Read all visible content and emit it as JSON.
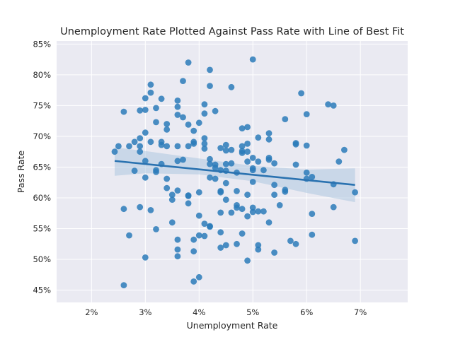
{
  "colors": {
    "background": "#ffffff",
    "plot_background": "#eaeaf2",
    "grid": "#ffffff",
    "points": "#2b7bba",
    "fit_line": "#2a72b0",
    "confidence_band": "#a8c4de",
    "text": "#262626"
  },
  "chart_data": {
    "type": "scatter",
    "title": "Unemployment Rate Plotted Against Pass Rate with Line of Best Fit",
    "xlabel": "Unemployment Rate",
    "ylabel": "Pass Rate",
    "xlim": [
      0.0135,
      0.0788
    ],
    "ylim": [
      0.43,
      0.855
    ],
    "x_ticks": [
      0.02,
      0.03,
      0.04,
      0.05,
      0.06,
      0.07
    ],
    "x_tick_labels": [
      "2%",
      "3%",
      "4%",
      "5%",
      "6%",
      "7%"
    ],
    "y_ticks": [
      0.45,
      0.5,
      0.55,
      0.6,
      0.65,
      0.7,
      0.75,
      0.8,
      0.85
    ],
    "y_tick_labels": [
      "45%",
      "50%",
      "55%",
      "60%",
      "65%",
      "70%",
      "75%",
      "80%",
      "85%"
    ],
    "grid": true,
    "legend": "none",
    "fit_line": {
      "x": [
        0.0243,
        0.069
      ],
      "y": [
        0.66,
        0.621
      ]
    },
    "confidence_band": {
      "x": [
        0.0243,
        0.03,
        0.04,
        0.05,
        0.06,
        0.069
      ],
      "lower": [
        0.636,
        0.64,
        0.638,
        0.627,
        0.608,
        0.593
      ],
      "upper": [
        0.682,
        0.676,
        0.664,
        0.652,
        0.646,
        0.648
      ]
    },
    "series": [
      {
        "points": [
          [
            0.0243,
            0.675
          ],
          [
            0.025,
            0.684
          ],
          [
            0.026,
            0.74
          ],
          [
            0.026,
            0.582
          ],
          [
            0.026,
            0.458
          ],
          [
            0.027,
            0.684
          ],
          [
            0.027,
            0.539
          ],
          [
            0.028,
            0.691
          ],
          [
            0.028,
            0.644
          ],
          [
            0.029,
            0.742
          ],
          [
            0.029,
            0.697
          ],
          [
            0.029,
            0.675
          ],
          [
            0.029,
            0.684
          ],
          [
            0.029,
            0.585
          ],
          [
            0.03,
            0.762
          ],
          [
            0.03,
            0.743
          ],
          [
            0.03,
            0.706
          ],
          [
            0.03,
            0.66
          ],
          [
            0.03,
            0.633
          ],
          [
            0.03,
            0.503
          ],
          [
            0.031,
            0.784
          ],
          [
            0.031,
            0.771
          ],
          [
            0.031,
            0.691
          ],
          [
            0.031,
            0.58
          ],
          [
            0.032,
            0.746
          ],
          [
            0.032,
            0.723
          ],
          [
            0.032,
            0.645
          ],
          [
            0.032,
            0.642
          ],
          [
            0.032,
            0.549
          ],
          [
            0.033,
            0.761
          ],
          [
            0.033,
            0.691
          ],
          [
            0.033,
            0.686
          ],
          [
            0.033,
            0.655
          ],
          [
            0.034,
            0.72
          ],
          [
            0.034,
            0.711
          ],
          [
            0.034,
            0.684
          ],
          [
            0.034,
            0.631
          ],
          [
            0.034,
            0.616
          ],
          [
            0.035,
            0.605
          ],
          [
            0.035,
            0.597
          ],
          [
            0.035,
            0.56
          ],
          [
            0.036,
            0.758
          ],
          [
            0.036,
            0.748
          ],
          [
            0.036,
            0.735
          ],
          [
            0.036,
            0.684
          ],
          [
            0.036,
            0.66
          ],
          [
            0.036,
            0.612
          ],
          [
            0.036,
            0.532
          ],
          [
            0.036,
            0.516
          ],
          [
            0.036,
            0.505
          ],
          [
            0.037,
            0.79
          ],
          [
            0.037,
            0.731
          ],
          [
            0.037,
            0.662
          ],
          [
            0.038,
            0.82
          ],
          [
            0.038,
            0.719
          ],
          [
            0.038,
            0.684
          ],
          [
            0.038,
            0.604
          ],
          [
            0.038,
            0.603
          ],
          [
            0.038,
            0.591
          ],
          [
            0.039,
            0.709
          ],
          [
            0.039,
            0.691
          ],
          [
            0.039,
            0.688
          ],
          [
            0.039,
            0.532
          ],
          [
            0.039,
            0.513
          ],
          [
            0.039,
            0.464
          ],
          [
            0.04,
            0.722
          ],
          [
            0.04,
            0.609
          ],
          [
            0.04,
            0.571
          ],
          [
            0.04,
            0.539
          ],
          [
            0.04,
            0.471
          ],
          [
            0.041,
            0.752
          ],
          [
            0.041,
            0.737
          ],
          [
            0.041,
            0.697
          ],
          [
            0.041,
            0.688
          ],
          [
            0.041,
            0.68
          ],
          [
            0.041,
            0.558
          ],
          [
            0.041,
            0.538
          ],
          [
            0.042,
            0.808
          ],
          [
            0.042,
            0.782
          ],
          [
            0.042,
            0.663
          ],
          [
            0.042,
            0.655
          ],
          [
            0.042,
            0.633
          ],
          [
            0.042,
            0.554
          ],
          [
            0.042,
            0.553
          ],
          [
            0.043,
            0.741
          ],
          [
            0.043,
            0.654
          ],
          [
            0.043,
            0.649
          ],
          [
            0.043,
            0.631
          ],
          [
            0.044,
            0.681
          ],
          [
            0.044,
            0.645
          ],
          [
            0.044,
            0.611
          ],
          [
            0.044,
            0.609
          ],
          [
            0.044,
            0.576
          ],
          [
            0.044,
            0.544
          ],
          [
            0.044,
            0.519
          ],
          [
            0.045,
            0.686
          ],
          [
            0.045,
            0.677
          ],
          [
            0.045,
            0.655
          ],
          [
            0.045,
            0.644
          ],
          [
            0.045,
            0.624
          ],
          [
            0.045,
            0.597
          ],
          [
            0.045,
            0.523
          ],
          [
            0.046,
            0.78
          ],
          [
            0.046,
            0.678
          ],
          [
            0.046,
            0.656
          ],
          [
            0.046,
            0.576
          ],
          [
            0.047,
            0.641
          ],
          [
            0.047,
            0.611
          ],
          [
            0.047,
            0.588
          ],
          [
            0.047,
            0.584
          ],
          [
            0.047,
            0.525
          ],
          [
            0.048,
            0.713
          ],
          [
            0.048,
            0.684
          ],
          [
            0.048,
            0.676
          ],
          [
            0.048,
            0.673
          ],
          [
            0.048,
            0.582
          ],
          [
            0.048,
            0.542
          ],
          [
            0.049,
            0.715
          ],
          [
            0.049,
            0.688
          ],
          [
            0.049,
            0.675
          ],
          [
            0.049,
            0.659
          ],
          [
            0.049,
            0.605
          ],
          [
            0.049,
            0.57
          ],
          [
            0.049,
            0.498
          ],
          [
            0.05,
            0.825
          ],
          [
            0.05,
            0.665
          ],
          [
            0.05,
            0.648
          ],
          [
            0.05,
            0.645
          ],
          [
            0.05,
            0.626
          ],
          [
            0.05,
            0.584
          ],
          [
            0.05,
            0.577
          ],
          [
            0.051,
            0.698
          ],
          [
            0.051,
            0.659
          ],
          [
            0.051,
            0.578
          ],
          [
            0.051,
            0.523
          ],
          [
            0.051,
            0.516
          ],
          [
            0.052,
            0.645
          ],
          [
            0.052,
            0.578
          ],
          [
            0.053,
            0.705
          ],
          [
            0.053,
            0.695
          ],
          [
            0.053,
            0.665
          ],
          [
            0.053,
            0.662
          ],
          [
            0.053,
            0.56
          ],
          [
            0.054,
            0.621
          ],
          [
            0.054,
            0.656
          ],
          [
            0.054,
            0.605
          ],
          [
            0.054,
            0.511
          ],
          [
            0.055,
            0.588
          ],
          [
            0.056,
            0.728
          ],
          [
            0.056,
            0.613
          ],
          [
            0.056,
            0.61
          ],
          [
            0.057,
            0.53
          ],
          [
            0.058,
            0.689
          ],
          [
            0.058,
            0.687
          ],
          [
            0.058,
            0.654
          ],
          [
            0.058,
            0.525
          ],
          [
            0.059,
            0.77
          ],
          [
            0.06,
            0.736
          ],
          [
            0.06,
            0.685
          ],
          [
            0.06,
            0.641
          ],
          [
            0.06,
            0.631
          ],
          [
            0.061,
            0.634
          ],
          [
            0.061,
            0.574
          ],
          [
            0.061,
            0.54
          ],
          [
            0.064,
            0.752
          ],
          [
            0.065,
            0.75
          ],
          [
            0.065,
            0.622
          ],
          [
            0.065,
            0.585
          ],
          [
            0.066,
            0.659
          ],
          [
            0.067,
            0.678
          ],
          [
            0.069,
            0.609
          ],
          [
            0.069,
            0.53
          ]
        ]
      }
    ]
  }
}
